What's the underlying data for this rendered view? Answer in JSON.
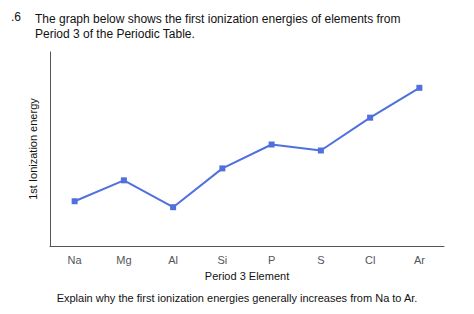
{
  "chart_data": {
    "type": "line",
    "title": "The graph below shows the first ionization energies of elements from\nPeriod 3 of the Periodic Table.",
    "annotations": [
      ".6",
      "Explain why the first ionization energies generally increases from Na to Ar."
    ],
    "x_label": "Period 3 Element",
    "y_label": "1st Ionization energy",
    "categories": [
      "Na",
      "Mg",
      "Al",
      "Si",
      "P",
      "S",
      "Cl",
      "Ar"
    ],
    "values": [
      3.0,
      3.7,
      2.8,
      4.1,
      4.9,
      4.7,
      5.8,
      6.8
    ],
    "ylim": [
      1.5,
      8.0
    ],
    "tick_labels": "x",
    "grid": false,
    "marker": "square"
  }
}
